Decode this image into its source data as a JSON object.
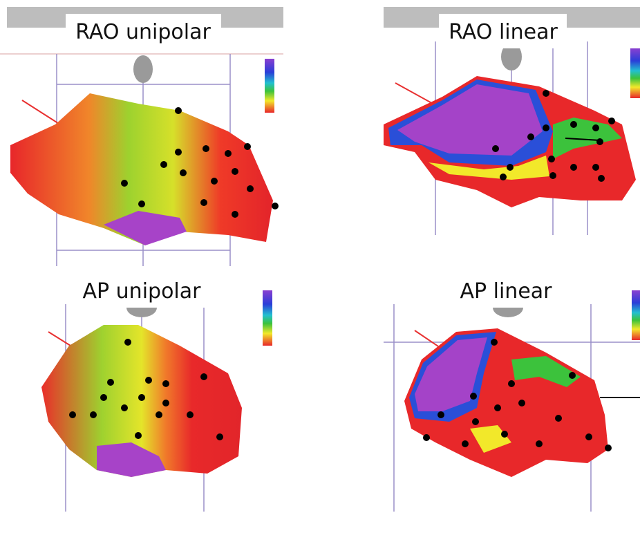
{
  "panels": [
    {
      "title": "RAO unipolar"
    },
    {
      "title": "RAO linear"
    },
    {
      "title": "AP unipolar"
    },
    {
      "title": "AP linear"
    }
  ]
}
